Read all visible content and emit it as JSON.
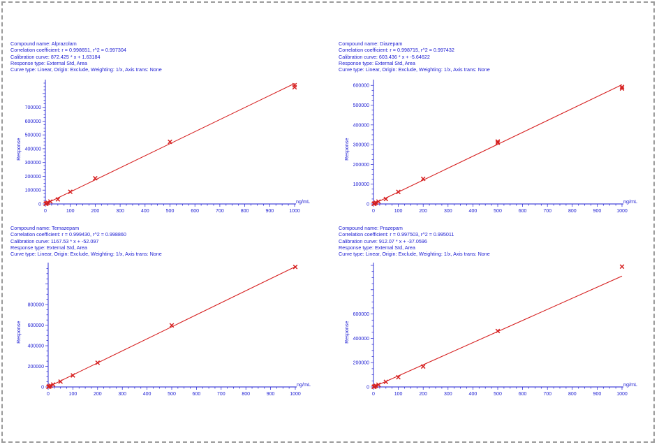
{
  "panels": [
    {
      "compound_line": "Compound name: Alprazolam",
      "correlation_line": "Correlation coefficient: r = 0.998651, r^2 = 0.997304",
      "calibration_line": "Calibration curve: 872.425 * x + 1.63184",
      "response_type_line": "Response type: External Std, Area",
      "curve_type_line": "Curve type: Linear, Origin: Exclude, Weighting: 1/x, Axis trans: None"
    },
    {
      "compound_line": "Compound name: Diazepam",
      "correlation_line": "Correlation coefficient: r = 0.998715, r^2 = 0.997432",
      "calibration_line": "Calibration curve: 603.436 * x + -5.64622",
      "response_type_line": "Response type: External Std, Area",
      "curve_type_line": "Curve type: Linear, Origin: Exclude, Weighting: 1/x, Axis trans: None"
    },
    {
      "compound_line": "Compound name: Temazepam",
      "correlation_line": "Correlation coefficient: r = 0.999430, r^2 = 0.998860",
      "calibration_line": "Calibration curve: 1167.53 * x + -52.097",
      "response_type_line": "Response type: External Std, Area",
      "curve_type_line": "Curve type: Linear, Origin: Exclude, Weighting: 1/x, Axis trans: None"
    },
    {
      "compound_line": "Compound name: Prazepam",
      "correlation_line": "Correlation coefficient: r = 0.997503, r^2 = 0.995011",
      "calibration_line": "Calibration curve: 912.07 * x + -37.0596",
      "response_type_line": "Response type: External Std, Area",
      "curve_type_line": "Curve type: Linear, Origin: Exclude, Weighting: 1/x, Axis trans: None"
    }
  ],
  "colors": {
    "text": "#1b1bd2",
    "axis": "#1b1bd2",
    "fit_line": "#d62020",
    "points": "#d62020",
    "frame_border": "#9a9a9a"
  },
  "chart_data": [
    {
      "type": "scatter",
      "title": "Alprazolam",
      "xlabel": "ng/mL",
      "ylabel": "Response",
      "xlim": [
        0,
        1000
      ],
      "ylim": [
        0,
        880000
      ],
      "x_ticks": [
        0,
        100,
        200,
        300,
        400,
        500,
        600,
        700,
        800,
        900,
        1000
      ],
      "y_ticks": [
        0,
        100000,
        200000,
        300000,
        400000,
        500000,
        600000,
        700000
      ],
      "grid": false,
      "fit": {
        "slope": 872.425,
        "intercept": 1.63184
      },
      "points": [
        {
          "x": 1,
          "y": 900
        },
        {
          "x": 2,
          "y": 1700
        },
        {
          "x": 5,
          "y": 4400
        },
        {
          "x": 10,
          "y": 8700
        },
        {
          "x": 20,
          "y": 17500
        },
        {
          "x": 50,
          "y": 33000
        },
        {
          "x": 100,
          "y": 88000
        },
        {
          "x": 200,
          "y": 186000
        },
        {
          "x": 500,
          "y": 450000
        },
        {
          "x": 1000,
          "y": 860000
        },
        {
          "x": 1000,
          "y": 845000
        }
      ]
    },
    {
      "type": "scatter",
      "title": "Diazepam",
      "xlabel": "ng/mL",
      "ylabel": "Response",
      "xlim": [
        0,
        1000
      ],
      "ylim": [
        0,
        615000
      ],
      "x_ticks": [
        0,
        100,
        200,
        300,
        400,
        500,
        600,
        700,
        800,
        900,
        1000
      ],
      "y_ticks": [
        0,
        100000,
        200000,
        300000,
        400000,
        500000,
        600000
      ],
      "grid": false,
      "fit": {
        "slope": 603.436,
        "intercept": -5.64622
      },
      "points": [
        {
          "x": 1,
          "y": 600
        },
        {
          "x": 2,
          "y": 1200
        },
        {
          "x": 5,
          "y": 3000
        },
        {
          "x": 10,
          "y": 6000
        },
        {
          "x": 20,
          "y": 12000
        },
        {
          "x": 50,
          "y": 25000
        },
        {
          "x": 100,
          "y": 61000
        },
        {
          "x": 200,
          "y": 127000
        },
        {
          "x": 500,
          "y": 310000
        },
        {
          "x": 500,
          "y": 316000
        },
        {
          "x": 1000,
          "y": 592000
        },
        {
          "x": 1000,
          "y": 584000
        }
      ]
    },
    {
      "type": "scatter",
      "title": "Temazepam",
      "xlabel": "ng/mL",
      "ylabel": "Response",
      "xlim": [
        0,
        1000
      ],
      "ylim": [
        0,
        1180000
      ],
      "x_ticks": [
        0,
        100,
        200,
        300,
        400,
        500,
        600,
        700,
        800,
        900,
        1000
      ],
      "y_ticks": [
        0,
        200000,
        400000,
        600000,
        800000
      ],
      "grid": false,
      "fit": {
        "slope": 1167.53,
        "intercept": -52.097
      },
      "points": [
        {
          "x": 1,
          "y": 1200
        },
        {
          "x": 2,
          "y": 2300
        },
        {
          "x": 5,
          "y": 5800
        },
        {
          "x": 10,
          "y": 11500
        },
        {
          "x": 20,
          "y": 23000
        },
        {
          "x": 50,
          "y": 52000
        },
        {
          "x": 100,
          "y": 112000
        },
        {
          "x": 200,
          "y": 235000
        },
        {
          "x": 500,
          "y": 598000
        },
        {
          "x": 1000,
          "y": 1165000
        }
      ]
    },
    {
      "type": "scatter",
      "title": "Prazepam",
      "xlabel": "ng/mL",
      "ylabel": "Response",
      "xlim": [
        0,
        1000
      ],
      "ylim": [
        0,
        1000000
      ],
      "x_ticks": [
        0,
        100,
        200,
        300,
        400,
        500,
        600,
        700,
        800,
        900,
        1000
      ],
      "y_ticks": [
        0,
        200000,
        400000,
        600000
      ],
      "grid": false,
      "fit": {
        "slope": 912.07,
        "intercept": -37.0596
      },
      "points": [
        {
          "x": 1,
          "y": 900
        },
        {
          "x": 2,
          "y": 1800
        },
        {
          "x": 5,
          "y": 4500
        },
        {
          "x": 10,
          "y": 9000
        },
        {
          "x": 20,
          "y": 18000
        },
        {
          "x": 50,
          "y": 42000
        },
        {
          "x": 100,
          "y": 80000
        },
        {
          "x": 200,
          "y": 168000
        },
        {
          "x": 500,
          "y": 460000
        },
        {
          "x": 1000,
          "y": 990000
        }
      ]
    }
  ]
}
